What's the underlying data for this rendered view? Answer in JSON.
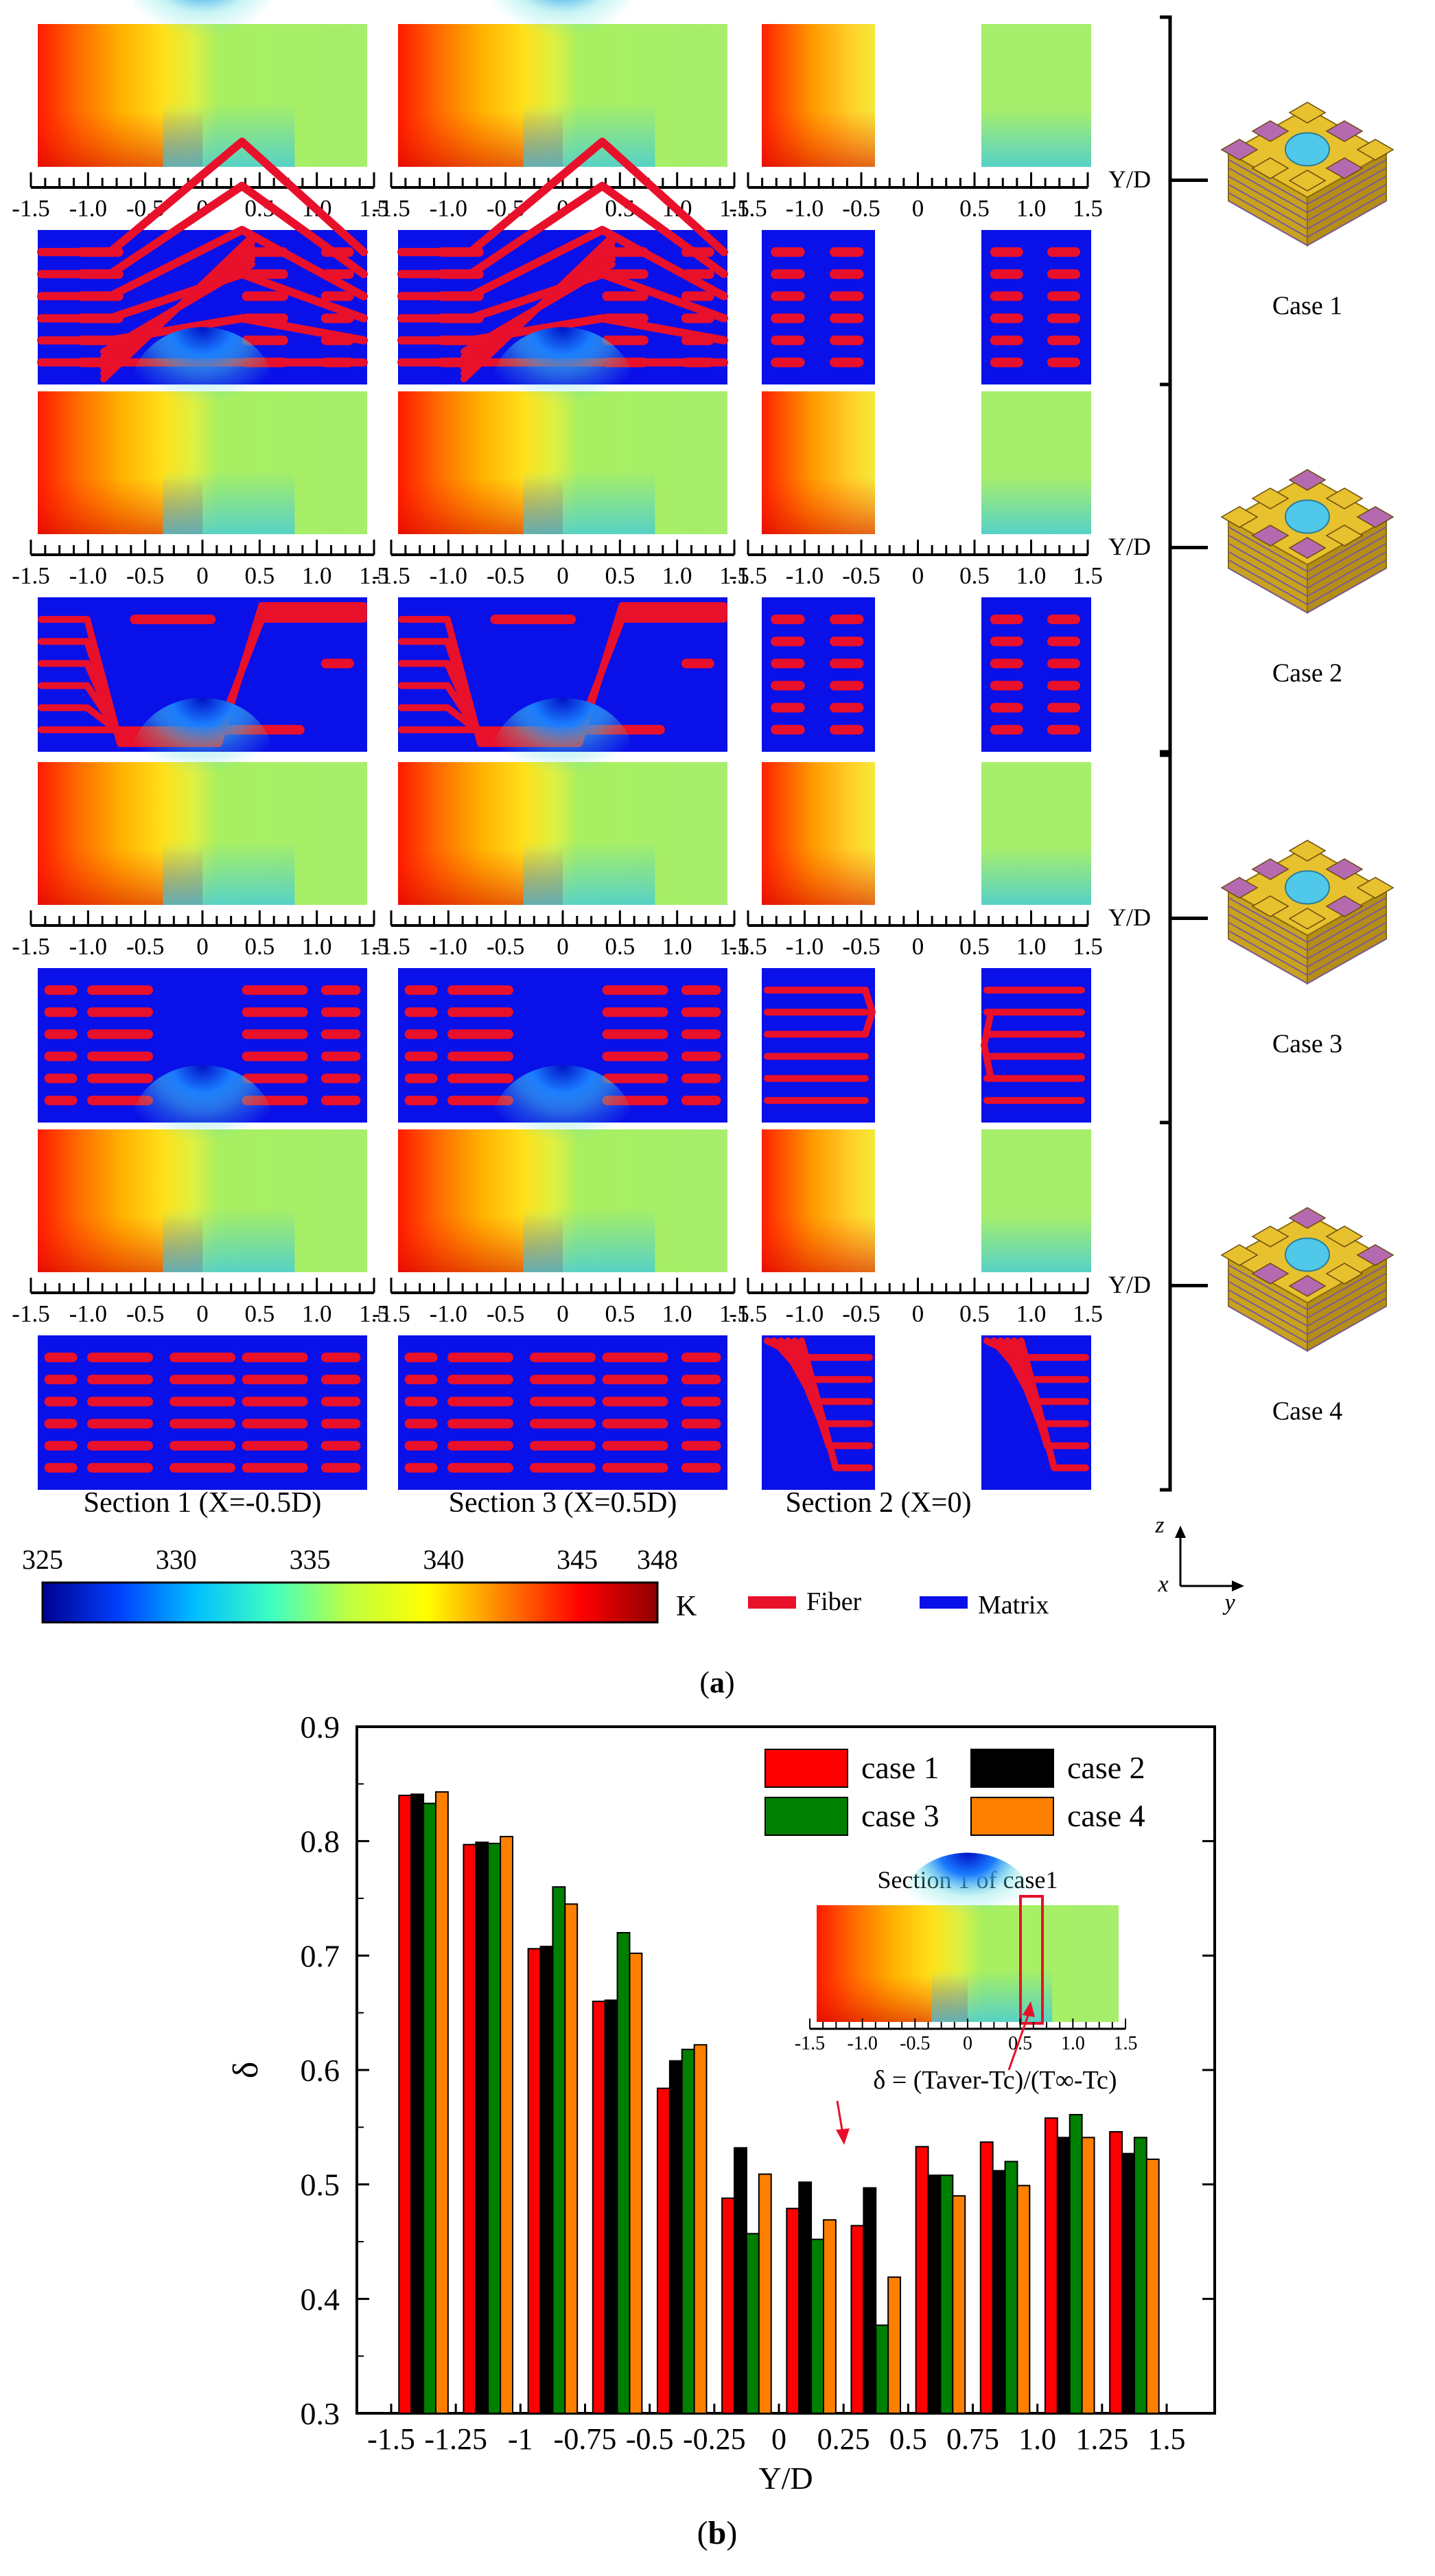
{
  "panel_a": {
    "label": "a",
    "axis_ticks": [
      "-1.5",
      "-1.0",
      "-0.5",
      "0",
      "0.5",
      "1.0",
      "1.5"
    ],
    "axis_label": "Y/D",
    "cases": [
      "Case 1",
      "Case 2",
      "Case 3",
      "Case 4"
    ],
    "sections": [
      {
        "label": "Section 1 (X=-0.5D)"
      },
      {
        "label": "Section 3 (X=0.5D)"
      },
      {
        "label": "Section 2 (X=0)"
      }
    ],
    "colorbar": {
      "ticks": [
        "325",
        "330",
        "335",
        "340",
        "345",
        "348"
      ],
      "tick_values": [
        325,
        330,
        335,
        340,
        345,
        348
      ],
      "range": [
        325,
        348
      ],
      "unit": "K",
      "colors": [
        "#00008f",
        "#0040ff",
        "#00c0ff",
        "#40ffbf",
        "#c0ff40",
        "#ffff00",
        "#ff8000",
        "#ff0000",
        "#8f0000"
      ]
    },
    "legend": {
      "fiber": {
        "label": "Fiber",
        "color": "#e8102a"
      },
      "matrix": {
        "label": "Matrix",
        "color": "#0a10e8"
      }
    },
    "axes_glyph": {
      "z": "z",
      "x": "x",
      "y": "y"
    },
    "model_colors": {
      "gold": "#e7c12e",
      "purple": "#b56ab0",
      "hole": "#4fc8ea"
    }
  },
  "panel_b": {
    "label": "b",
    "inset": {
      "title": "Section 1 of case1",
      "formula": "δ = (Taver-Tc)/(T∞-Tc)",
      "ticks": [
        "-1.5",
        "-1.0",
        "-0.5",
        "0",
        "0.5",
        "1.0",
        "1.5"
      ]
    }
  },
  "chart_data": {
    "type": "bar",
    "title": "",
    "xlabel": "Y/D",
    "ylabel": "δ",
    "ylim": [
      0.3,
      0.9
    ],
    "yticks": [
      "0.3",
      "0.4",
      "0.5",
      "0.6",
      "0.7",
      "0.8",
      "0.9"
    ],
    "xticks": [
      "-1.5",
      "-1.25",
      "-1",
      "-0.75",
      "-0.5",
      "-0.25",
      "0",
      "0.25",
      "0.5",
      "0.75",
      "1.0",
      "1.25",
      "1.5"
    ],
    "legend_position": "top-right",
    "series": [
      {
        "name": "case 1",
        "color": "#ff0000",
        "values": [
          0.84,
          0.797,
          0.706,
          0.66,
          0.584,
          0.488,
          0.479,
          0.464,
          0.533,
          0.537,
          0.558,
          0.546
        ]
      },
      {
        "name": "case 2",
        "color": "#000000",
        "values": [
          0.841,
          0.799,
          0.708,
          0.661,
          0.608,
          0.532,
          0.502,
          0.497,
          0.508,
          0.512,
          0.541,
          0.527
        ]
      },
      {
        "name": "case 3",
        "color": "#008000",
        "values": [
          0.833,
          0.798,
          0.76,
          0.72,
          0.618,
          0.457,
          0.452,
          0.377,
          0.508,
          0.52,
          0.561,
          0.541
        ]
      },
      {
        "name": "case 4",
        "color": "#ff8000",
        "values": [
          0.843,
          0.804,
          0.745,
          0.702,
          0.622,
          0.509,
          0.469,
          0.419,
          0.49,
          0.499,
          0.541,
          0.522
        ]
      }
    ]
  }
}
